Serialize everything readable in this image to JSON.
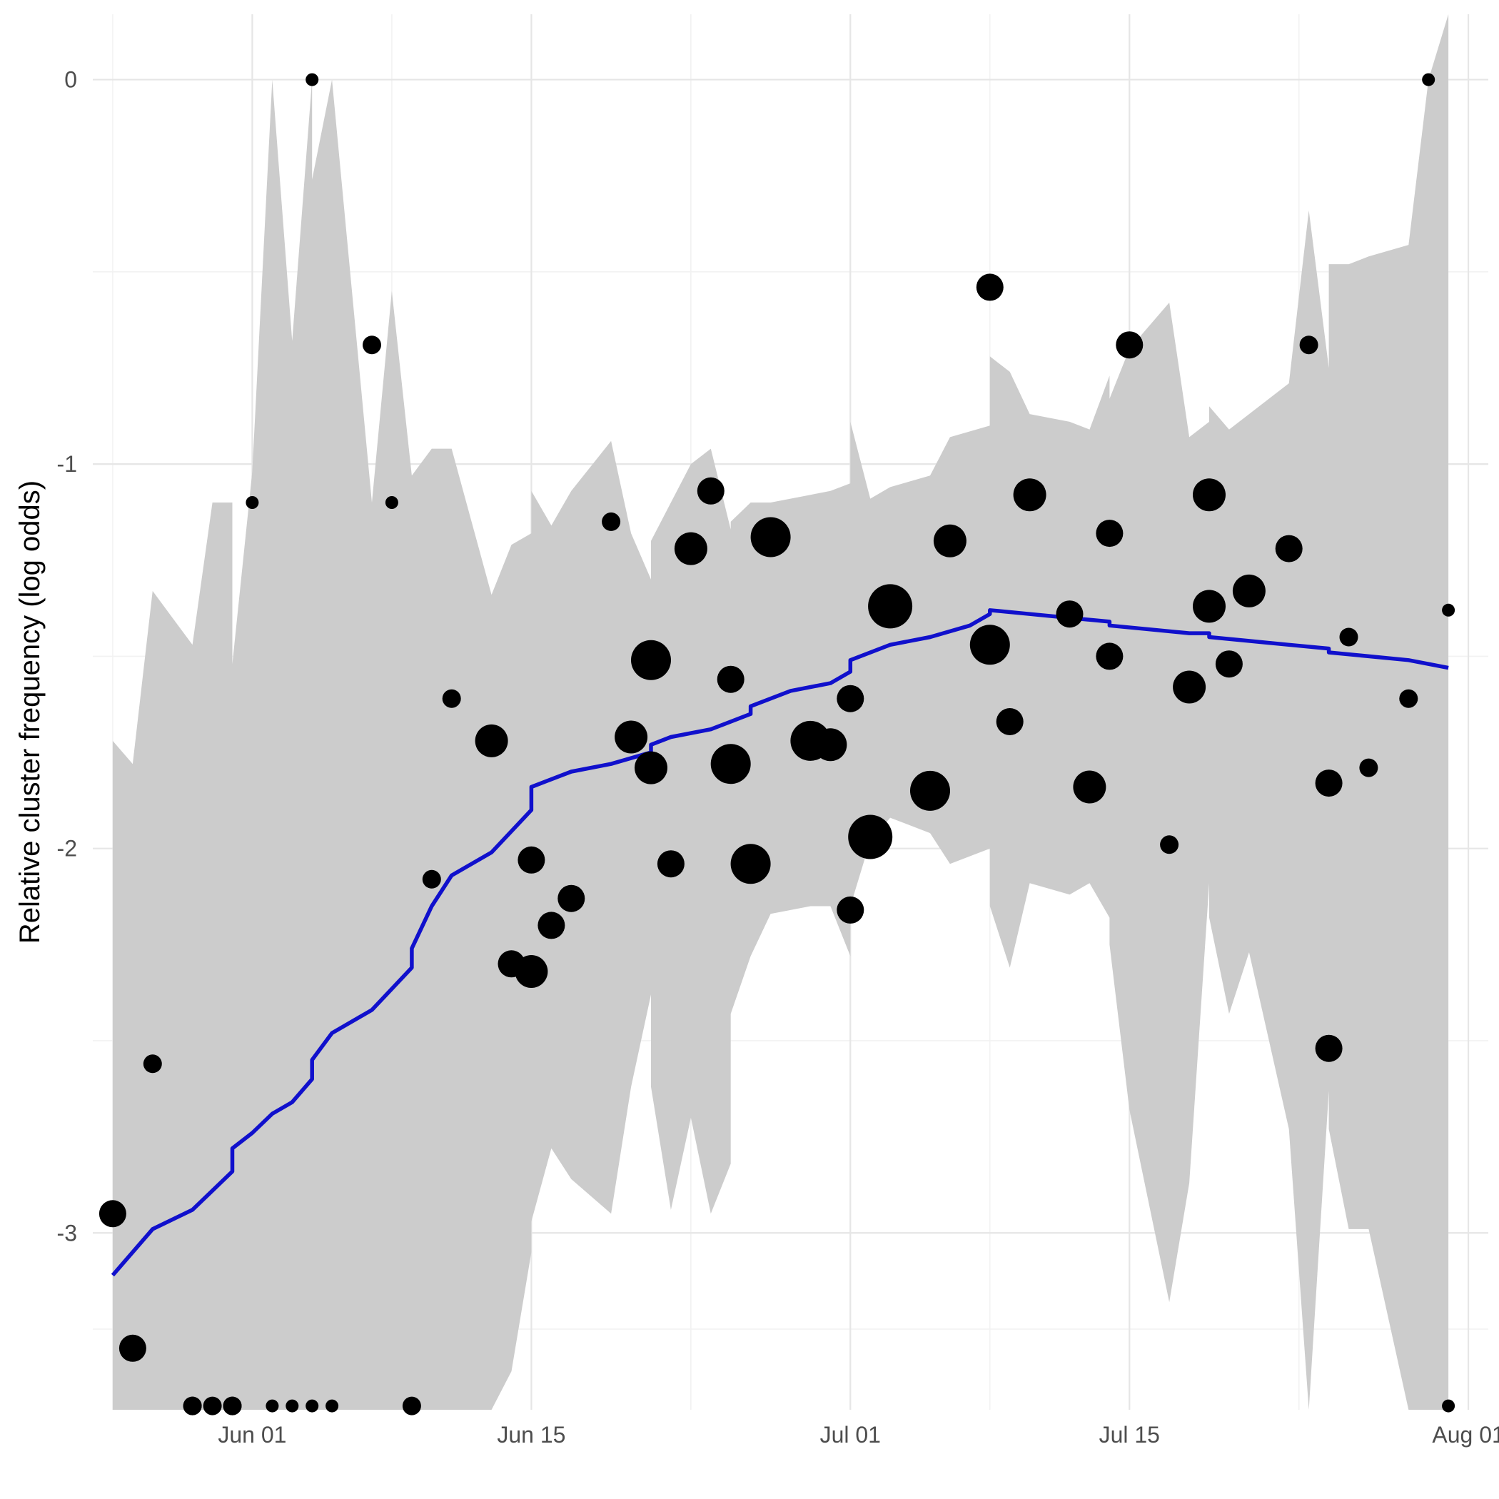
{
  "chart_data": {
    "type": "scatter",
    "title": "",
    "xlabel": "",
    "ylabel": "Relative cluster frequency (log odds)",
    "x_ticks": [
      "2020-06-01",
      "2020-06-15",
      "2020-07-01",
      "2020-07-15",
      "2020-08-01"
    ],
    "x_tick_labels": [
      "Jun 01",
      "Jun 15",
      "Jul 01",
      "Jul 15",
      "Aug 01"
    ],
    "xlim": [
      "2020-05-24",
      "2020-08-02"
    ],
    "y_ticks": [
      -3,
      -2,
      -1,
      0
    ],
    "y_tick_labels": [
      "-3",
      "-2",
      "-1",
      "0"
    ],
    "ylim": [
      -3.46,
      0.17
    ],
    "grid": true,
    "colors": {
      "trend": "#1010cc",
      "ribbon": "#cccccc",
      "points": "#000000",
      "grid_major": "#e6e6e6",
      "grid_minor": "#f2f2f2"
    },
    "series": [
      {
        "kind": "points",
        "points": [
          {
            "x": "2020-05-25",
            "y": -2.95,
            "size": 2
          },
          {
            "x": "2020-05-26",
            "y": -3.3,
            "size": 2
          },
          {
            "x": "2020-05-27",
            "y": -2.56,
            "size": 1
          },
          {
            "x": "2020-05-29",
            "y": -3.45,
            "size": 1
          },
          {
            "x": "2020-05-29",
            "y": -3.45,
            "size": 1
          },
          {
            "x": "2020-05-30",
            "y": -3.45,
            "size": 1
          },
          {
            "x": "2020-05-31",
            "y": -3.45,
            "size": 1
          },
          {
            "x": "2020-05-31",
            "y": -3.45,
            "size": 1
          },
          {
            "x": "2020-06-01",
            "y": -1.1,
            "size": 0
          },
          {
            "x": "2020-06-02",
            "y": -3.45,
            "size": 0
          },
          {
            "x": "2020-06-03",
            "y": -3.45,
            "size": 0
          },
          {
            "x": "2020-06-04",
            "y": 0,
            "size": 0
          },
          {
            "x": "2020-06-04",
            "y": -3.45,
            "size": 0
          },
          {
            "x": "2020-06-05",
            "y": -3.45,
            "size": 0
          },
          {
            "x": "2020-06-07",
            "y": -0.69,
            "size": 1
          },
          {
            "x": "2020-06-08",
            "y": -1.1,
            "size": 0
          },
          {
            "x": "2020-06-09",
            "y": -3.45,
            "size": 1
          },
          {
            "x": "2020-06-10",
            "y": -2.08,
            "size": 1
          },
          {
            "x": "2020-06-11",
            "y": -1.61,
            "size": 1
          },
          {
            "x": "2020-06-13",
            "y": -1.72,
            "size": 3
          },
          {
            "x": "2020-06-14",
            "y": -2.3,
            "size": 2
          },
          {
            "x": "2020-06-15",
            "y": -2.03,
            "size": 2
          },
          {
            "x": "2020-06-15",
            "y": -2.32,
            "size": 3
          },
          {
            "x": "2020-06-16",
            "y": -2.2,
            "size": 2
          },
          {
            "x": "2020-06-17",
            "y": -2.13,
            "size": 2
          },
          {
            "x": "2020-06-19",
            "y": -1.15,
            "size": 1
          },
          {
            "x": "2020-06-20",
            "y": -1.71,
            "size": 3
          },
          {
            "x": "2020-06-21",
            "y": -1.51,
            "size": 4
          },
          {
            "x": "2020-06-21",
            "y": -1.79,
            "size": 3
          },
          {
            "x": "2020-06-22",
            "y": -2.04,
            "size": 2
          },
          {
            "x": "2020-06-23",
            "y": -1.22,
            "size": 3
          },
          {
            "x": "2020-06-24",
            "y": -1.07,
            "size": 2
          },
          {
            "x": "2020-06-25",
            "y": -1.56,
            "size": 2
          },
          {
            "x": "2020-06-25",
            "y": -1.78,
            "size": 4
          },
          {
            "x": "2020-06-26",
            "y": -2.04,
            "size": 4
          },
          {
            "x": "2020-06-27",
            "y": -1.19,
            "size": 4
          },
          {
            "x": "2020-06-29",
            "y": -1.72,
            "size": 4
          },
          {
            "x": "2020-06-30",
            "y": -1.73,
            "size": 3
          },
          {
            "x": "2020-07-01",
            "y": -1.61,
            "size": 2
          },
          {
            "x": "2020-07-01",
            "y": -2.16,
            "size": 2
          },
          {
            "x": "2020-07-02",
            "y": -1.97,
            "size": 5
          },
          {
            "x": "2020-07-03",
            "y": -1.37,
            "size": 5
          },
          {
            "x": "2020-07-05",
            "y": -1.85,
            "size": 4
          },
          {
            "x": "2020-07-06",
            "y": -1.2,
            "size": 3
          },
          {
            "x": "2020-07-08",
            "y": -0.54,
            "size": 2
          },
          {
            "x": "2020-07-08",
            "y": -1.47,
            "size": 4
          },
          {
            "x": "2020-07-09",
            "y": -1.67,
            "size": 2
          },
          {
            "x": "2020-07-10",
            "y": -1.08,
            "size": 3
          },
          {
            "x": "2020-07-12",
            "y": -1.39,
            "size": 2
          },
          {
            "x": "2020-07-13",
            "y": -1.84,
            "size": 3
          },
          {
            "x": "2020-07-14",
            "y": -1.18,
            "size": 2
          },
          {
            "x": "2020-07-14",
            "y": -1.5,
            "size": 2
          },
          {
            "x": "2020-07-15",
            "y": -0.69,
            "size": 2
          },
          {
            "x": "2020-07-17",
            "y": -1.99,
            "size": 1
          },
          {
            "x": "2020-07-18",
            "y": -1.58,
            "size": 3
          },
          {
            "x": "2020-07-19",
            "y": -1.08,
            "size": 3
          },
          {
            "x": "2020-07-19",
            "y": -1.37,
            "size": 3
          },
          {
            "x": "2020-07-20",
            "y": -1.52,
            "size": 2
          },
          {
            "x": "2020-07-21",
            "y": -1.33,
            "size": 3
          },
          {
            "x": "2020-07-23",
            "y": -1.22,
            "size": 2
          },
          {
            "x": "2020-07-24",
            "y": -0.69,
            "size": 1
          },
          {
            "x": "2020-07-25",
            "y": -1.83,
            "size": 2
          },
          {
            "x": "2020-07-25",
            "y": -2.52,
            "size": 2
          },
          {
            "x": "2020-07-26",
            "y": -1.45,
            "size": 1
          },
          {
            "x": "2020-07-27",
            "y": -1.79,
            "size": 1
          },
          {
            "x": "2020-07-29",
            "y": -1.61,
            "size": 1
          },
          {
            "x": "2020-07-30",
            "y": 0,
            "size": 0
          },
          {
            "x": "2020-07-31",
            "y": -1.38,
            "size": 0
          },
          {
            "x": "2020-07-31",
            "y": -3.45,
            "size": 0
          }
        ]
      },
      {
        "kind": "line",
        "x": [
          "2020-05-25",
          "2020-05-27",
          "2020-05-29",
          "2020-05-30",
          "2020-05-31",
          "2020-05-31",
          "2020-06-01",
          "2020-06-02",
          "2020-06-03",
          "2020-06-04",
          "2020-06-04",
          "2020-06-05",
          "2020-06-07",
          "2020-06-09",
          "2020-06-09",
          "2020-06-10",
          "2020-06-11",
          "2020-06-13",
          "2020-06-15",
          "2020-06-15",
          "2020-06-17",
          "2020-06-19",
          "2020-06-21",
          "2020-06-21",
          "2020-06-22",
          "2020-06-24",
          "2020-06-26",
          "2020-06-26",
          "2020-06-28",
          "2020-06-30",
          "2020-07-01",
          "2020-07-01",
          "2020-07-03",
          "2020-07-05",
          "2020-07-07",
          "2020-07-08",
          "2020-07-08",
          "2020-07-10",
          "2020-07-12",
          "2020-07-14",
          "2020-07-14",
          "2020-07-16",
          "2020-07-18",
          "2020-07-19",
          "2020-07-19",
          "2020-07-21",
          "2020-07-23",
          "2020-07-25",
          "2020-07-25",
          "2020-07-27",
          "2020-07-29",
          "2020-07-31"
        ],
        "y": [
          -3.11,
          -2.99,
          -2.94,
          -2.89,
          -2.84,
          -2.78,
          -2.74,
          -2.69,
          -2.66,
          -2.6,
          -2.55,
          -2.48,
          -2.42,
          -2.31,
          -2.26,
          -2.15,
          -2.07,
          -2.01,
          -1.9,
          -1.84,
          -1.8,
          -1.78,
          -1.75,
          -1.73,
          -1.71,
          -1.69,
          -1.65,
          -1.63,
          -1.59,
          -1.57,
          -1.54,
          -1.51,
          -1.47,
          -1.45,
          -1.42,
          -1.39,
          -1.38,
          -1.39,
          -1.4,
          -1.41,
          -1.42,
          -1.43,
          -1.44,
          -1.44,
          -1.45,
          -1.46,
          -1.47,
          -1.48,
          -1.49,
          -1.5,
          -1.51,
          -1.53
        ]
      },
      {
        "kind": "ribbon",
        "x": [
          "2020-05-25",
          "2020-05-26",
          "2020-05-27",
          "2020-05-29",
          "2020-05-30",
          "2020-05-31",
          "2020-05-31",
          "2020-06-01",
          "2020-06-02",
          "2020-06-03",
          "2020-06-04",
          "2020-06-04",
          "2020-06-05",
          "2020-06-07",
          "2020-06-08",
          "2020-06-09",
          "2020-06-10",
          "2020-06-11",
          "2020-06-13",
          "2020-06-14",
          "2020-06-15",
          "2020-06-15",
          "2020-06-16",
          "2020-06-17",
          "2020-06-19",
          "2020-06-20",
          "2020-06-21",
          "2020-06-21",
          "2020-06-22",
          "2020-06-23",
          "2020-06-24",
          "2020-06-25",
          "2020-06-25",
          "2020-06-26",
          "2020-06-27",
          "2020-06-29",
          "2020-06-30",
          "2020-07-01",
          "2020-07-01",
          "2020-07-02",
          "2020-07-03",
          "2020-07-05",
          "2020-07-06",
          "2020-07-08",
          "2020-07-08",
          "2020-07-09",
          "2020-07-10",
          "2020-07-12",
          "2020-07-13",
          "2020-07-14",
          "2020-07-14",
          "2020-07-15",
          "2020-07-17",
          "2020-07-18",
          "2020-07-19",
          "2020-07-19",
          "2020-07-20",
          "2020-07-21",
          "2020-07-23",
          "2020-07-24",
          "2020-07-25",
          "2020-07-25",
          "2020-07-26",
          "2020-07-27",
          "2020-07-29",
          "2020-07-30",
          "2020-07-31"
        ],
        "ymin": [
          -3.46,
          -3.46,
          -3.46,
          -3.46,
          -3.46,
          -3.46,
          -3.46,
          -3.46,
          -3.46,
          -3.46,
          -3.46,
          -3.46,
          -3.46,
          -3.46,
          -3.46,
          -3.46,
          -3.46,
          -3.46,
          -3.46,
          -3.36,
          -3.05,
          -2.97,
          -2.78,
          -2.86,
          -2.95,
          -2.62,
          -2.38,
          -2.62,
          -2.94,
          -2.7,
          -2.95,
          -2.82,
          -2.43,
          -2.28,
          -2.17,
          -2.15,
          -2.15,
          -2.28,
          -2.15,
          -1.98,
          -1.92,
          -1.96,
          -2.04,
          -2.0,
          -2.15,
          -2.31,
          -2.09,
          -2.12,
          -2.09,
          -2.18,
          -2.25,
          -2.68,
          -3.18,
          -2.87,
          -2.09,
          -2.18,
          -2.43,
          -2.27,
          -2.73,
          -3.46,
          -2.63,
          -2.73,
          -2.99,
          -2.99,
          -3.46,
          -3.46,
          -3.46
        ],
        "ymax": [
          -1.72,
          -1.78,
          -1.33,
          -1.47,
          -1.1,
          -1.1,
          -1.52,
          -1.02,
          0.0,
          -0.68,
          0.0,
          -0.26,
          0.0,
          -1.1,
          -0.55,
          -1.03,
          -0.96,
          -0.96,
          -1.34,
          -1.21,
          -1.18,
          -1.07,
          -1.16,
          -1.07,
          -0.94,
          -1.18,
          -1.3,
          -1.2,
          -1.1,
          -1.0,
          -0.96,
          -1.17,
          -1.15,
          -1.1,
          -1.1,
          -1.08,
          -1.07,
          -1.05,
          -0.89,
          -1.09,
          -1.06,
          -1.03,
          -0.93,
          -0.9,
          -0.72,
          -0.76,
          -0.87,
          -0.89,
          -0.91,
          -0.77,
          -0.83,
          -0.7,
          -0.58,
          -0.93,
          -0.89,
          -0.85,
          -0.91,
          -0.87,
          -0.79,
          -0.34,
          -0.75,
          -0.48,
          -0.48,
          -0.46,
          -0.43,
          0.0,
          0.17
        ]
      }
    ]
  }
}
